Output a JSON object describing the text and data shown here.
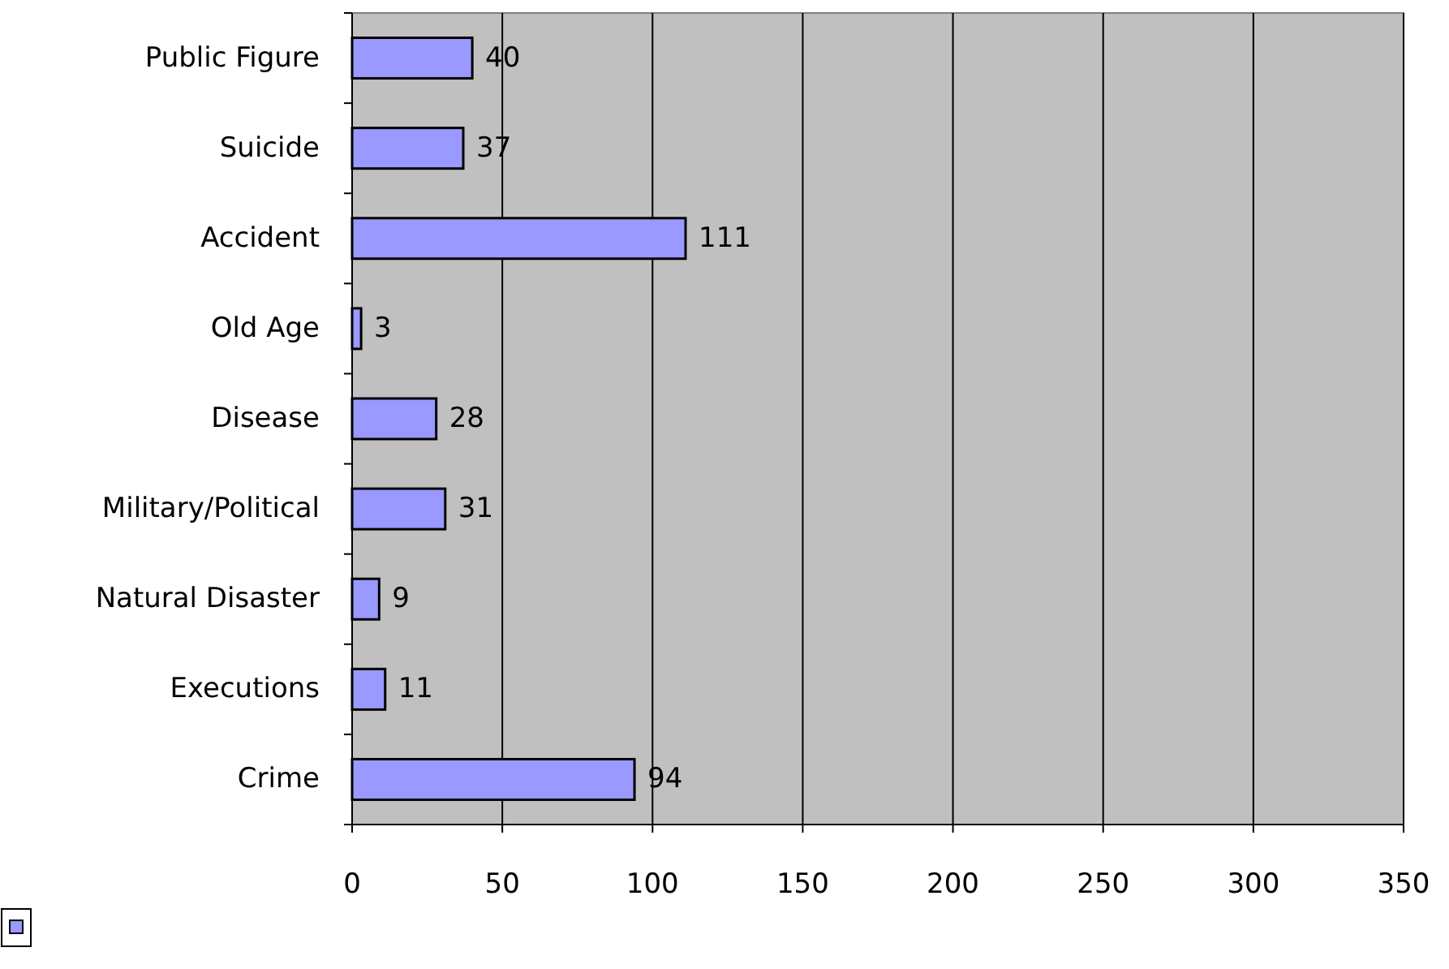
{
  "chart_data": {
    "type": "bar",
    "orientation": "horizontal",
    "categories": [
      "Public Figure",
      "Suicide",
      "Accident",
      "Old Age",
      "Disease",
      "Military/Political",
      "Natural Disaster",
      "Executions",
      "Crime"
    ],
    "series": [
      {
        "color": "#9999ff",
        "values": [
          40,
          37,
          111,
          3,
          28,
          31,
          9,
          11,
          94
        ]
      }
    ],
    "data_labels": true,
    "xlim": [
      0,
      350
    ],
    "xticks": [
      0,
      50,
      100,
      150,
      200,
      250,
      300,
      350
    ],
    "grid": "x"
  }
}
